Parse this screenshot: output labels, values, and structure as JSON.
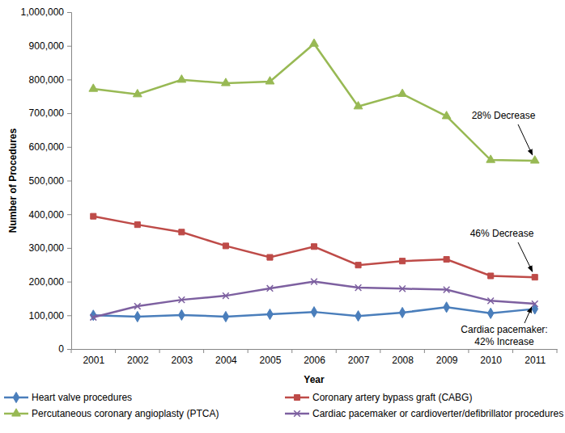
{
  "chart_data": {
    "type": "line",
    "x_label": "Year",
    "y_label": "Number of Procedures",
    "categories": [
      "2001",
      "2002",
      "2003",
      "2004",
      "2005",
      "2006",
      "2007",
      "2008",
      "2009",
      "2010",
      "2011"
    ],
    "ylim": [
      0,
      1000000
    ],
    "yticks": [
      {
        "value": 0,
        "label": "0"
      },
      {
        "value": 100000,
        "label": "100,000"
      },
      {
        "value": 200000,
        "label": "200,000"
      },
      {
        "value": 300000,
        "label": "300,000"
      },
      {
        "value": 400000,
        "label": "400,000"
      },
      {
        "value": 500000,
        "label": "500,000"
      },
      {
        "value": 600000,
        "label": "600,000"
      },
      {
        "value": 700000,
        "label": "700,000"
      },
      {
        "value": 800000,
        "label": "800,000"
      },
      {
        "value": 900000,
        "label": "900,000"
      },
      {
        "value": 1000000,
        "label": "1,000,000"
      }
    ],
    "grid": false,
    "legend": "bottom",
    "series": [
      {
        "name": "Heart valve procedures",
        "color": "#4a7ebb",
        "marker": "diamond",
        "values": [
          100000,
          96000,
          101000,
          96000,
          103000,
          110000,
          98000,
          108000,
          124000,
          106000,
          119000
        ]
      },
      {
        "name": "Coronary artery bypass graft (CABG)",
        "color": "#be4b48",
        "marker": "square",
        "values": [
          394000,
          369000,
          347000,
          306000,
          272000,
          304000,
          249000,
          261000,
          266000,
          217000,
          213000
        ]
      },
      {
        "name": "Percutaneous coronary angioplasty (PTCA)",
        "color": "#98b954",
        "marker": "triangle",
        "values": [
          772000,
          756000,
          799000,
          789000,
          794000,
          906000,
          720000,
          757000,
          691000,
          561000,
          559000
        ]
      },
      {
        "name": "Cardiac pacemaker or cardioverter/defibrillator procedures",
        "color": "#7d60a0",
        "marker": "cross",
        "values": [
          94000,
          127000,
          146000,
          158000,
          180000,
          200000,
          182000,
          179000,
          176000,
          143000,
          134000
        ]
      }
    ],
    "annotations": [
      {
        "text": [
          "28% Decrease"
        ],
        "series": "Percutaneous coronary angioplasty (PTCA)",
        "x": "2011"
      },
      {
        "text": [
          "46% Decrease"
        ],
        "series": "Coronary artery bypass graft (CABG)",
        "x": "2011"
      },
      {
        "text": [
          "Cardiac pacemaker:",
          "42% Increase"
        ],
        "series": "Cardiac pacemaker or cardioverter/defibrillator procedures",
        "x": "2011"
      }
    ]
  }
}
